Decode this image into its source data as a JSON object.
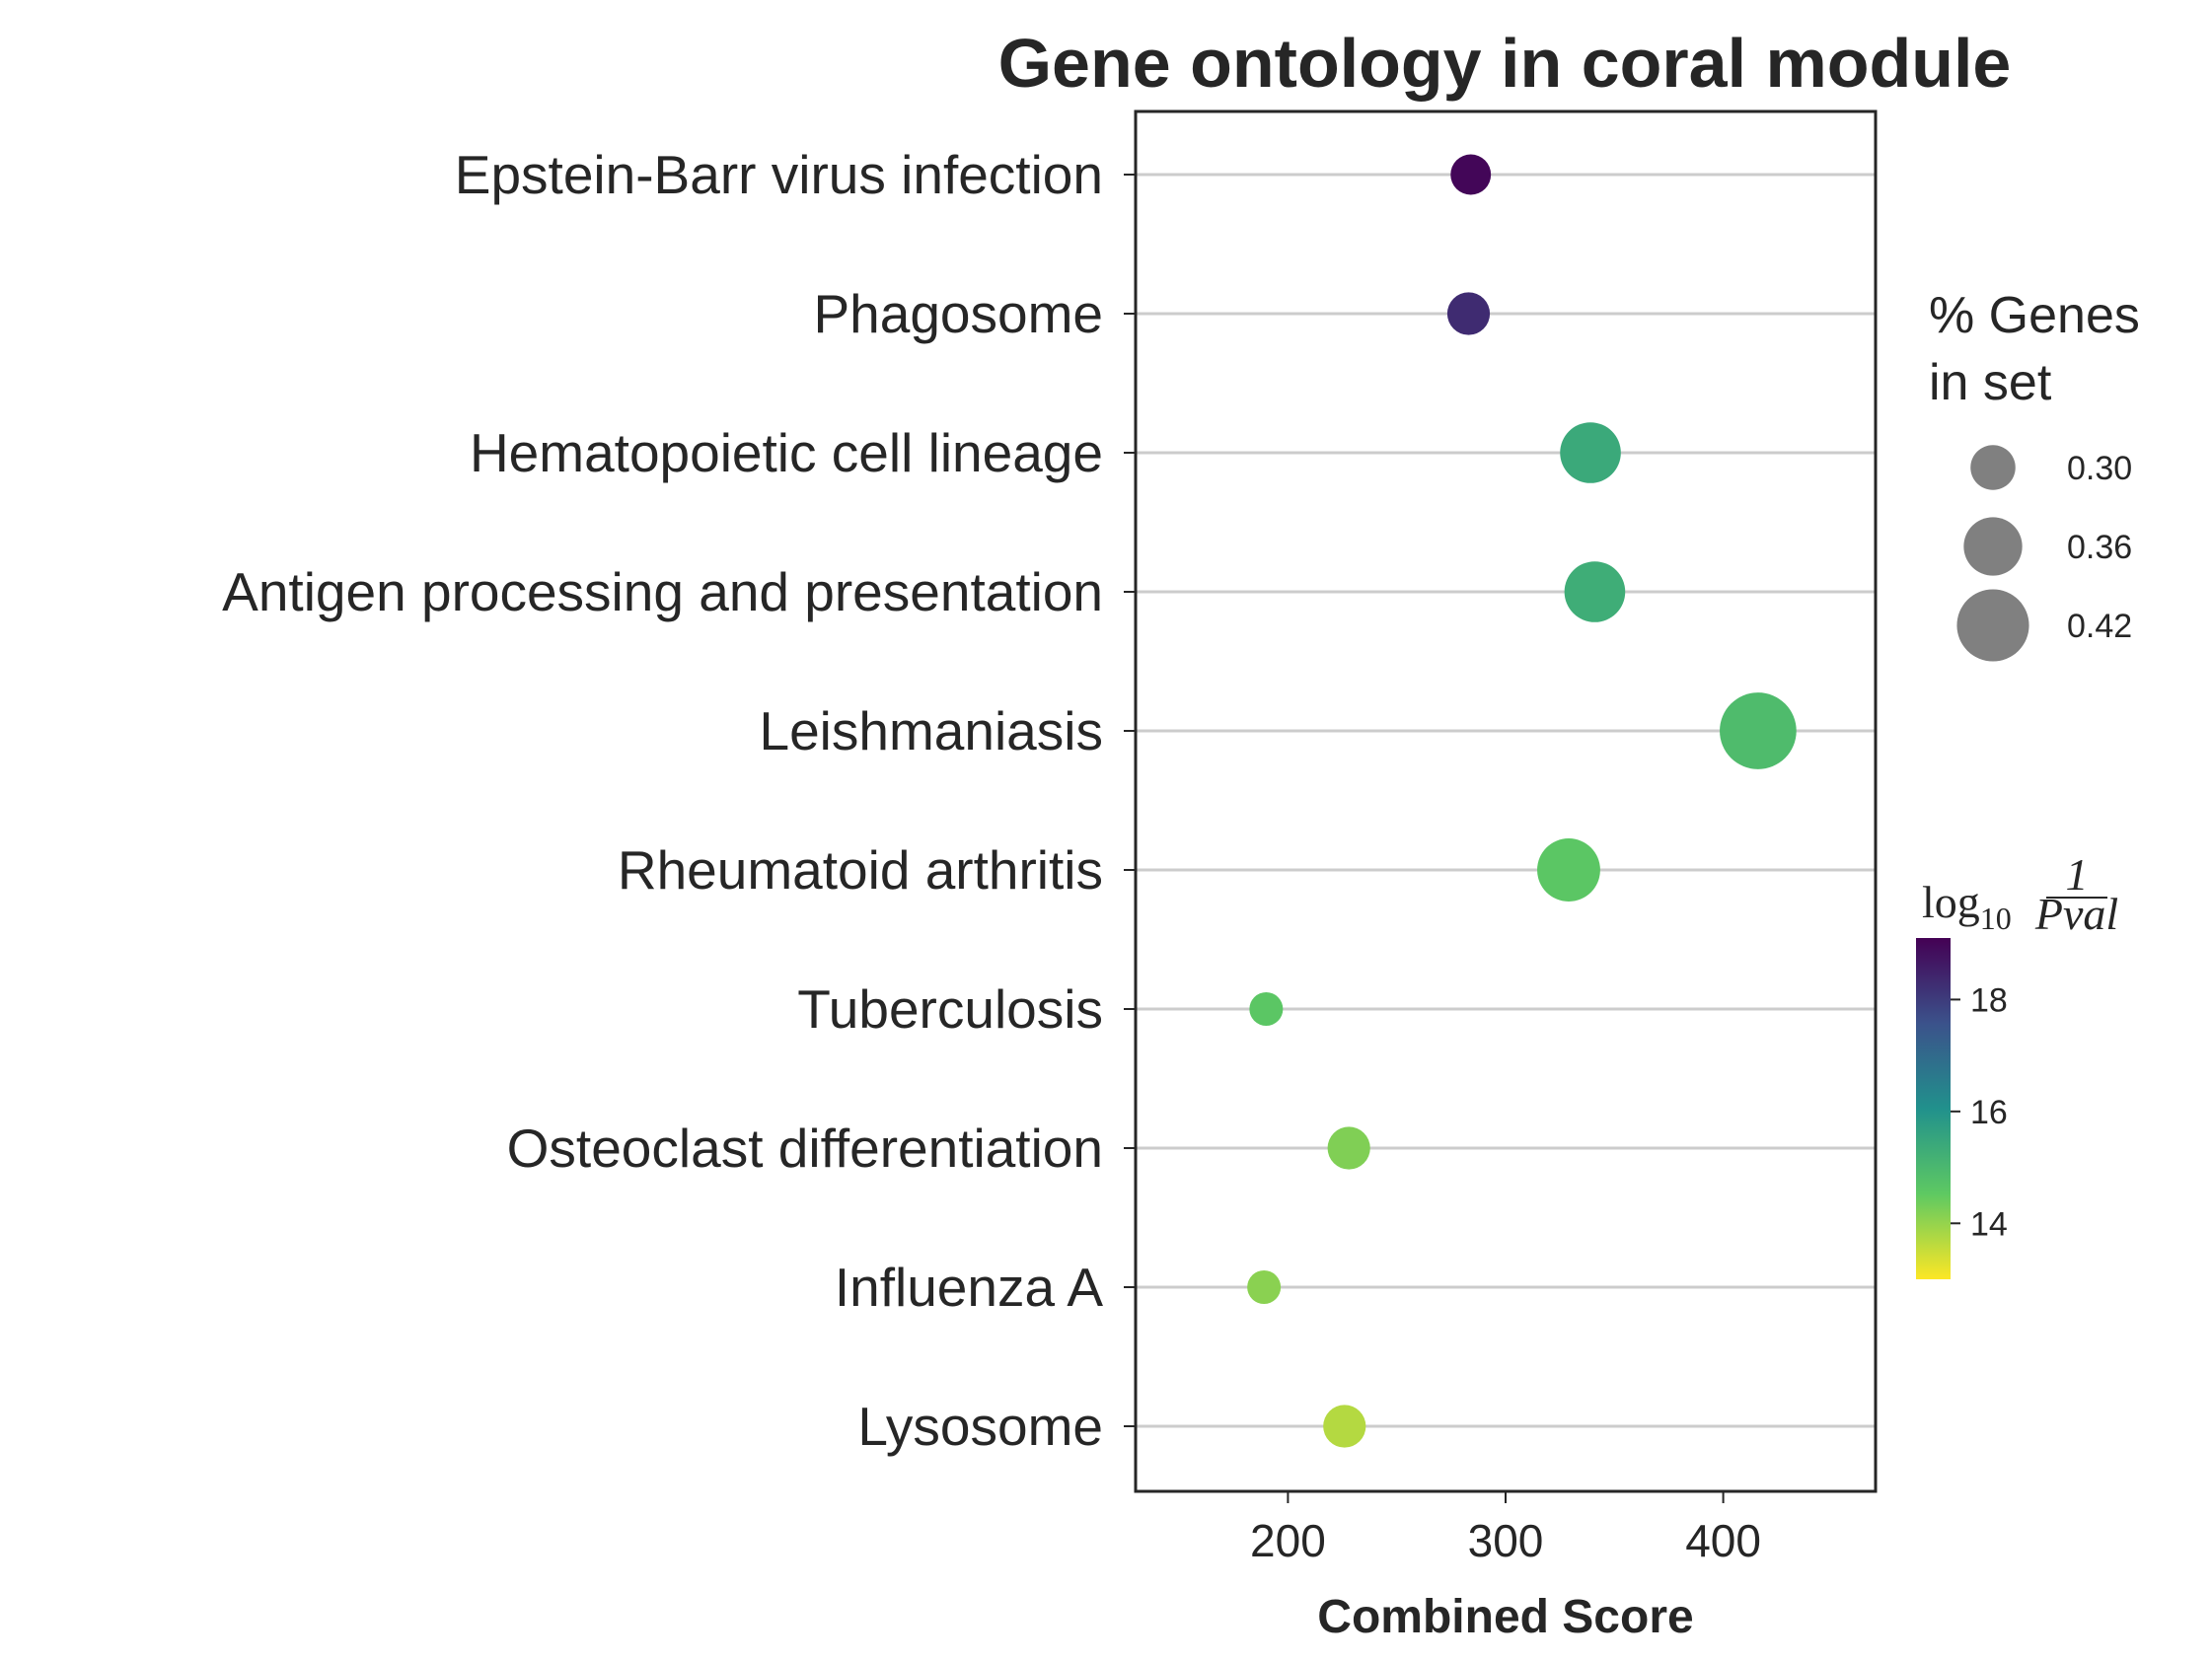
{
  "chart_data": {
    "type": "scatter",
    "title": "Gene ontology in coral module",
    "xlabel": "Combined Score",
    "ylabel": "",
    "xlim": [
      130,
      470
    ],
    "xticks": [
      200,
      300,
      400
    ],
    "categories": [
      "Epstein-Barr virus infection",
      "Phagosome",
      "Hematopoietic cell lineage",
      "Antigen processing and presentation",
      "Leishmaniasis",
      "Rheumatoid arthritis",
      "Tuberculosis",
      "Osteoclast differentiation",
      "Influenza A",
      "Lysosome"
    ],
    "points": [
      {
        "term": "Epstein-Barr virus infection",
        "combined_score": 284,
        "genes_in_set": 0.28,
        "log10_inv_pval": 19.0
      },
      {
        "term": "Phagosome",
        "combined_score": 283,
        "genes_in_set": 0.29,
        "log10_inv_pval": 18.3
      },
      {
        "term": "Hematopoietic cell lineage",
        "combined_score": 339,
        "genes_in_set": 0.37,
        "log10_inv_pval": 15.4
      },
      {
        "term": "Antigen processing and presentation",
        "combined_score": 341,
        "genes_in_set": 0.37,
        "log10_inv_pval": 15.3
      },
      {
        "term": "Leishmaniasis",
        "combined_score": 416,
        "genes_in_set": 0.44,
        "log10_inv_pval": 14.9
      },
      {
        "term": "Rheumatoid arthritis",
        "combined_score": 329,
        "genes_in_set": 0.38,
        "log10_inv_pval": 14.6
      },
      {
        "term": "Tuberculosis",
        "combined_score": 190,
        "genes_in_set": 0.25,
        "log10_inv_pval": 14.6
      },
      {
        "term": "Osteoclast differentiation",
        "combined_score": 228,
        "genes_in_set": 0.29,
        "log10_inv_pval": 14.2
      },
      {
        "term": "Influenza A",
        "combined_score": 189,
        "genes_in_set": 0.25,
        "log10_inv_pval": 14.1
      },
      {
        "term": "Lysosome",
        "combined_score": 226,
        "genes_in_set": 0.29,
        "log10_inv_pval": 13.7
      }
    ],
    "size_legend": {
      "title_lines": [
        "% Genes",
        "in set"
      ],
      "entries": [
        {
          "label": "0.30",
          "value": 0.3
        },
        {
          "label": "0.36",
          "value": 0.36
        },
        {
          "label": "0.42",
          "value": 0.42
        }
      ]
    },
    "colorbar": {
      "title_base": "log",
      "title_sub": "10",
      "title_num": "1",
      "title_den": "Pval",
      "range": [
        13.0,
        19.1
      ],
      "ticks": [
        {
          "label": "14",
          "value": 14
        },
        {
          "label": "16",
          "value": 16
        },
        {
          "label": "18",
          "value": 18
        }
      ],
      "colormap": "viridis_r"
    },
    "grid": "horizontal",
    "legend_position": "right"
  }
}
